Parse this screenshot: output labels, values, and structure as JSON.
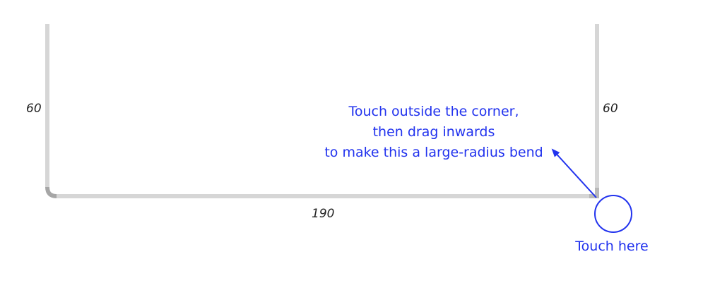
{
  "dimensions": {
    "left_side": "60",
    "right_side": "60",
    "bottom": "190"
  },
  "hint": {
    "lines": [
      "Touch outside the corner,",
      "then drag inwards",
      "to make this a large-radius bend"
    ],
    "touch_label": "Touch here"
  },
  "colors": {
    "pipe": "#d6d6d6",
    "bend": "#a6a6a6",
    "accent": "#2233ee",
    "label": "#222222"
  }
}
